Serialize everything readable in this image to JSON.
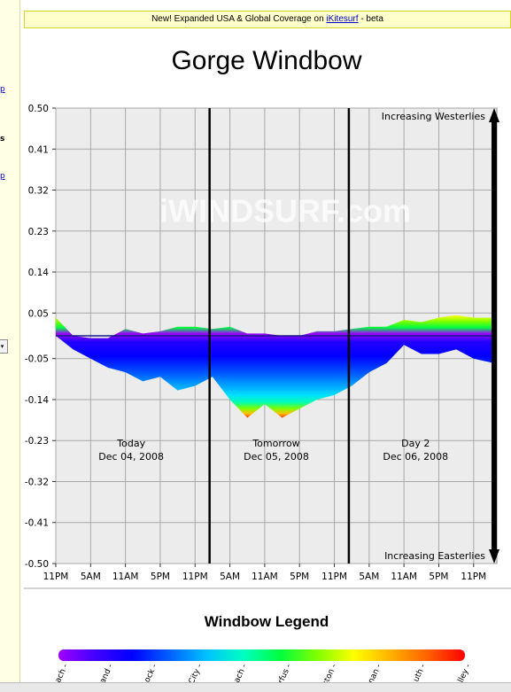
{
  "banner": {
    "prefix": "New! Expanded USA & Global Coverage on ",
    "link": "iKitesurf",
    "suffix": " - beta"
  },
  "sidebar": {
    "fragments": [
      "p",
      "s",
      "p"
    ]
  },
  "chart_data": {
    "type": "area",
    "title": "Gorge Windbow",
    "yticks": [
      "0.50",
      "0.41",
      "0.32",
      "0.23",
      "0.14",
      "0.05",
      "-0.05",
      "-0.14",
      "-0.23",
      "-0.32",
      "-0.41",
      "-0.50"
    ],
    "ylim": [
      -0.5,
      0.5
    ],
    "xticks": [
      "11PM",
      "5AM",
      "11AM",
      "5PM",
      "11PM",
      "5AM",
      "11AM",
      "5PM",
      "11PM",
      "5AM",
      "11AM",
      "5PM",
      "11PM"
    ],
    "x_hours": [
      0,
      6,
      12,
      18,
      24,
      30,
      36,
      42,
      48,
      54,
      60,
      66,
      72
    ],
    "xlim": [
      0,
      76
    ],
    "grid": true,
    "day_dividers_hours": [
      26.5,
      50.5
    ],
    "day_labels": [
      {
        "name": "Today",
        "date": "Dec 04, 2008",
        "hour": 13
      },
      {
        "name": "Tomorrow",
        "date": "Dec 05, 2008",
        "hour": 38
      },
      {
        "name": "Day 2",
        "date": "Dec 06, 2008",
        "hour": 62
      }
    ],
    "annotations": {
      "top": "Increasing Westerlies",
      "bottom": "Increasing Easterlies"
    },
    "watermark": "iWINDSURF.com",
    "series": {
      "hours": [
        0,
        3,
        6,
        9,
        12,
        15,
        18,
        21,
        24,
        27,
        30,
        33,
        36,
        39,
        42,
        45,
        48,
        51,
        54,
        57,
        60,
        63,
        66,
        69,
        72,
        75.5
      ],
      "upper": [
        0.04,
        0.0,
        -0.005,
        -0.005,
        0.015,
        0.005,
        0.01,
        0.02,
        0.02,
        0.015,
        0.02,
        0.005,
        0.005,
        0.0,
        0.0,
        0.01,
        0.01,
        0.015,
        0.02,
        0.02,
        0.035,
        0.03,
        0.04,
        0.045,
        0.04,
        0.04
      ],
      "lower": [
        0.0,
        -0.03,
        -0.05,
        -0.07,
        -0.08,
        -0.1,
        -0.09,
        -0.12,
        -0.11,
        -0.09,
        -0.14,
        -0.18,
        -0.15,
        -0.18,
        -0.16,
        -0.14,
        -0.13,
        -0.11,
        -0.08,
        -0.06,
        -0.02,
        -0.04,
        -0.04,
        -0.03,
        -0.05,
        -0.06
      ]
    }
  },
  "legend": {
    "title": "Windbow Legend",
    "ticks": [
      "ach -",
      "and -",
      "ock -",
      "City -",
      "ach -",
      "rfus -",
      "ston -",
      "nan -",
      "uth -",
      "lley -"
    ]
  }
}
